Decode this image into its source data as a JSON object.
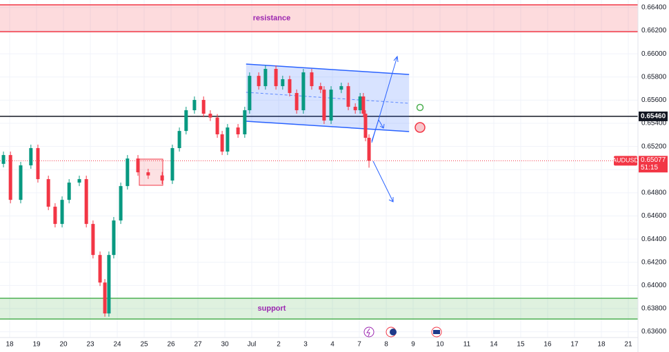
{
  "chart_data": {
    "type": "candlestick",
    "symbol": "AUDUSD",
    "countdown": "51:15",
    "last_price": {
      "value": 0.65077,
      "label": "0.65077"
    },
    "up_color": "#089981",
    "down_color": "#f23645",
    "grid": true,
    "xlim": [
      -0.359,
      23.359
    ],
    "ylim": [
      0.6355,
      0.66465
    ],
    "xticks": [
      {
        "value": 0,
        "label": "18"
      },
      {
        "value": 1,
        "label": "19"
      },
      {
        "value": 2,
        "label": "20"
      },
      {
        "value": 3,
        "label": "23"
      },
      {
        "value": 4,
        "label": "24"
      },
      {
        "value": 5,
        "label": "25"
      },
      {
        "value": 6,
        "label": "26"
      },
      {
        "value": 7,
        "label": "27"
      },
      {
        "value": 8,
        "label": "30"
      },
      {
        "value": 9,
        "label": "Jul"
      },
      {
        "value": 10,
        "label": "2"
      },
      {
        "value": 11,
        "label": "3"
      },
      {
        "value": 12,
        "label": "4"
      },
      {
        "value": 13,
        "label": "7"
      },
      {
        "value": 14,
        "label": "8"
      },
      {
        "value": 15,
        "label": "9"
      },
      {
        "value": 16,
        "label": "10"
      },
      {
        "value": 17,
        "label": "11"
      },
      {
        "value": 18,
        "label": "14"
      },
      {
        "value": 19,
        "label": "15"
      },
      {
        "value": 20,
        "label": "16"
      },
      {
        "value": 21,
        "label": "17"
      },
      {
        "value": 22,
        "label": "18"
      },
      {
        "value": 23,
        "label": "21"
      }
    ],
    "yticks": [
      {
        "value": 0.664,
        "label": "0.66400"
      },
      {
        "value": 0.662,
        "label": "0.66200"
      },
      {
        "value": 0.66,
        "label": "0.66000"
      },
      {
        "value": 0.658,
        "label": "0.65800"
      },
      {
        "value": 0.656,
        "label": "0.65600"
      },
      {
        "value": 0.654,
        "label": "0.65400"
      },
      {
        "value": 0.652,
        "label": "0.65200"
      },
      {
        "value": 0.65,
        "label": "0.65000"
      },
      {
        "value": 0.648,
        "label": "0.64800"
      },
      {
        "value": 0.646,
        "label": "0.64600"
      },
      {
        "value": 0.644,
        "label": "0.64400"
      },
      {
        "value": 0.642,
        "label": "0.64200"
      },
      {
        "value": 0.64,
        "label": "0.64000"
      },
      {
        "value": 0.638,
        "label": "0.63800"
      },
      {
        "value": 0.636,
        "label": "0.63600"
      }
    ],
    "zones": [
      {
        "label": "resistance",
        "range": [
          0.66191,
          0.66423
        ],
        "color": "#f23645"
      },
      {
        "label": "support",
        "range": [
          0.6371,
          0.63889
        ],
        "color": "#4caf50"
      }
    ],
    "level": {
      "value": 0.6546,
      "label": "0.65460"
    },
    "channel": {
      "x": [
        8.79,
        14.85
      ],
      "upper": [
        0.65912,
        0.65822
      ],
      "lower": [
        0.65418,
        0.65329
      ],
      "mid": [
        0.65668,
        0.65573
      ],
      "color": "#2962ff"
    },
    "x": [
      -0.23,
      0.03,
      0.41,
      0.79,
      1.05,
      1.44,
      1.69,
      1.95,
      2.21,
      2.59,
      2.85,
      3.1,
      3.36,
      3.54,
      3.69,
      3.87,
      4.13,
      4.38,
      4.77,
      5.15,
      5.67,
      6.05,
      6.31,
      6.56,
      6.87,
      7.21,
      7.46,
      7.72,
      7.9,
      8.1,
      8.49,
      8.74,
      8.92,
      9.26,
      9.51,
      9.9,
      10.15,
      10.41,
      10.67,
      10.92,
      11.23,
      11.56,
      11.69,
      11.95,
      12.33,
      12.59,
      12.85,
      13.03,
      13.15,
      13.23,
      13.36
    ],
    "open": [
      0.6505,
      0.65126,
      0.64739,
      0.65037,
      0.65186,
      0.64918,
      0.6468,
      0.64531,
      0.64739,
      0.64888,
      0.64918,
      0.64531,
      0.64263,
      0.64025,
      0.63758,
      0.64263,
      0.64561,
      0.64858,
      0.65096,
      0.64977,
      0.6495,
      0.64906,
      0.65186,
      0.65334,
      0.65513,
      0.65602,
      0.65483,
      0.6545,
      0.65305,
      0.65156,
      0.65364,
      0.65305,
      0.65513,
      0.6581,
      0.65721,
      0.6587,
      0.65721,
      0.65781,
      0.65662,
      0.65513,
      0.6584,
      0.65721,
      0.65691,
      0.65424,
      0.65691,
      0.65721,
      0.65543,
      0.65513,
      0.65632,
      0.65483,
      0.65275
    ],
    "high": [
      0.65156,
      0.65156,
      0.65067,
      0.65216,
      0.65216,
      0.64948,
      0.6471,
      0.64769,
      0.64918,
      0.64948,
      0.64948,
      0.64561,
      0.64293,
      0.64055,
      0.64293,
      0.64591,
      0.64888,
      0.65126,
      0.65126,
      0.65007,
      0.6498,
      0.65216,
      0.65364,
      0.65543,
      0.65632,
      0.65632,
      0.65513,
      0.6548,
      0.65335,
      0.65394,
      0.65394,
      0.65543,
      0.6584,
      0.6584,
      0.659,
      0.659,
      0.65811,
      0.65811,
      0.65692,
      0.6587,
      0.6587,
      0.65751,
      0.65721,
      0.65721,
      0.65751,
      0.65751,
      0.65573,
      0.65662,
      0.65662,
      0.65513,
      0.65305
    ],
    "low": [
      0.6502,
      0.64709,
      0.64709,
      0.65007,
      0.64888,
      0.6465,
      0.64501,
      0.64501,
      0.64709,
      0.64858,
      0.64501,
      0.64233,
      0.63995,
      0.6373,
      0.6373,
      0.64233,
      0.64531,
      0.64828,
      0.64947,
      0.6492,
      0.64876,
      0.64876,
      0.65156,
      0.65304,
      0.65483,
      0.65453,
      0.6542,
      0.65275,
      0.65126,
      0.65126,
      0.65275,
      0.65275,
      0.65483,
      0.65691,
      0.65691,
      0.65691,
      0.65691,
      0.65632,
      0.65483,
      0.65483,
      0.65691,
      0.65661,
      0.65394,
      0.65394,
      0.65661,
      0.65513,
      0.65483,
      0.65483,
      0.65453,
      0.65245,
      0.65017
    ],
    "close": [
      0.65126,
      0.64739,
      0.65037,
      0.65186,
      0.64918,
      0.6468,
      0.64531,
      0.64739,
      0.64888,
      0.64918,
      0.64531,
      0.64263,
      0.64025,
      0.63758,
      0.64263,
      0.64561,
      0.64858,
      0.65096,
      0.64977,
      0.6495,
      0.64906,
      0.65186,
      0.65334,
      0.65513,
      0.65602,
      0.65483,
      0.6545,
      0.65305,
      0.65156,
      0.65364,
      0.65305,
      0.65513,
      0.6581,
      0.65721,
      0.6587,
      0.65721,
      0.65781,
      0.65662,
      0.65513,
      0.6584,
      0.65721,
      0.65691,
      0.65424,
      0.65691,
      0.65721,
      0.65543,
      0.65513,
      0.65632,
      0.65483,
      0.65275,
      0.65077
    ]
  }
}
